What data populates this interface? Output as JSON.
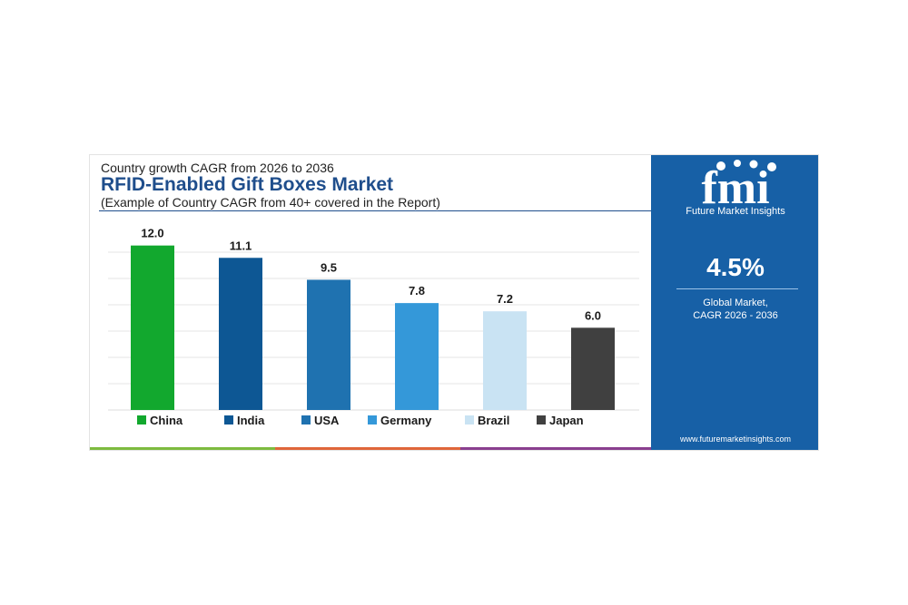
{
  "header": {
    "subtitle": "Country growth CAGR from 2026 to 2036",
    "title": "RFID-Enabled Gift Boxes Market",
    "note": "(Example of Country CAGR from 40+ covered in the Report)"
  },
  "side_panel": {
    "logo_text": "fmi",
    "logo_caption": "Future Market Insights",
    "cagr_value": "4.5%",
    "cagr_label_line1": "Global Market,",
    "cagr_label_line2": "CAGR 2026 - 2036",
    "website": "www.futuremarketinsights.com"
  },
  "colors": {
    "panel_blue": "#1760a6",
    "title_blue": "#1f4e8c",
    "bottom_strip": [
      "#7dbb3f",
      "#e0663a",
      "#8a3f8f"
    ]
  },
  "chart_data": {
    "type": "bar",
    "title": "RFID-Enabled Gift Boxes Market",
    "xlabel": "",
    "ylabel": "",
    "ylim": [
      0,
      13.5
    ],
    "grid": true,
    "legend": "bottom",
    "categories": [
      "China",
      "India",
      "USA",
      "Germany",
      "Brazil",
      "Japan"
    ],
    "values": [
      12.0,
      11.1,
      9.5,
      7.8,
      7.2,
      6.0
    ],
    "value_labels": [
      "12.0",
      "11.1",
      "9.5",
      "7.8",
      "7.2",
      "6.0"
    ],
    "colors": [
      "#12a82e",
      "#0d5794",
      "#1f72b0",
      "#3498d9",
      "#c9e3f3",
      "#404040"
    ]
  }
}
